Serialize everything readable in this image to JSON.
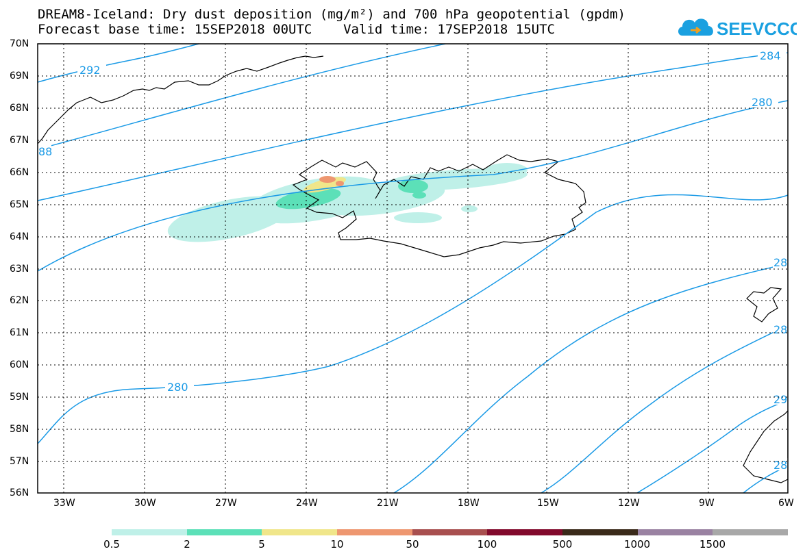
{
  "title": {
    "line1": "DREAM8-Iceland: Dry dust deposition (mg/m²) and 700 hPa geopotential (gpdm)",
    "line2": "Forecast base time: 15SEP2018 00UTC    Valid time: 17SEP2018 15UTC"
  },
  "logo": {
    "text": "SEEVCCC",
    "icon": "cloud-logo-icon",
    "color": "#1aa0e0"
  },
  "map": {
    "lat_labels": [
      "70N",
      "69N",
      "68N",
      "67N",
      "66N",
      "65N",
      "64N",
      "63N",
      "62N",
      "61N",
      "60N",
      "59N",
      "58N",
      "57N",
      "56N"
    ],
    "lon_labels": [
      "33W",
      "30W",
      "27W",
      "24W",
      "21W",
      "18W",
      "15W",
      "12W",
      "9W",
      "6W"
    ],
    "contour_color": "#1a9ae6",
    "contour_labels": [
      "292",
      "284",
      "280",
      "88",
      "280",
      "28",
      "28",
      "29",
      "28"
    ]
  },
  "legend": {
    "labels": [
      "0.5",
      "2",
      "5",
      "10",
      "50",
      "100",
      "500",
      "1000",
      "1500"
    ],
    "colors": [
      "#bff0e8",
      "#5ce0b8",
      "#f0e68a",
      "#ee9770",
      "#a84f4f",
      "#820a2c",
      "#3a2a1a",
      "#9a82a2",
      "#a8a8a8"
    ]
  }
}
